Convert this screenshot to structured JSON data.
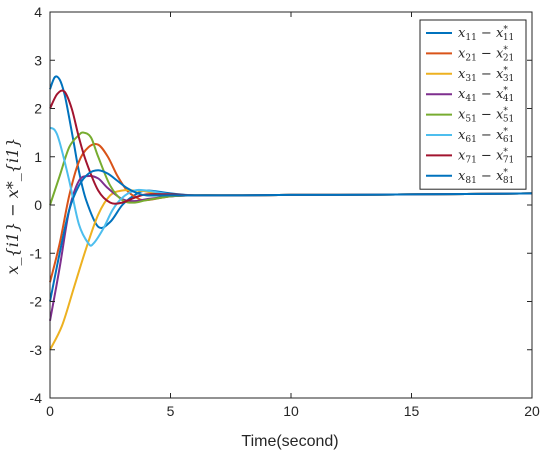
{
  "chart_data": {
    "type": "line",
    "title": "",
    "xlabel": "Time(second)",
    "ylabel": "x_{i1} − x*_{i1}",
    "xlim": [
      0,
      20
    ],
    "ylim": [
      -4,
      4
    ],
    "xticks": [
      0,
      5,
      10,
      15,
      20
    ],
    "yticks": [
      -4,
      -3,
      -2,
      -1,
      0,
      1,
      2,
      3,
      4
    ],
    "grid": false,
    "legend_position": "top-right",
    "series": [
      {
        "name": "x11 − x*11",
        "color": "#0072BD",
        "x": [
          0,
          0.2,
          0.4,
          0.6,
          0.8,
          1.0,
          1.2,
          1.5,
          2.0,
          2.5,
          3.0,
          3.5,
          4.0,
          5.0,
          6.0,
          8.0,
          10.0,
          12.0,
          15.0,
          20.0
        ],
        "y": [
          2.4,
          2.65,
          2.6,
          2.3,
          1.8,
          1.25,
          0.7,
          0.1,
          -0.45,
          -0.35,
          0.0,
          0.2,
          0.3,
          0.24,
          0.2,
          0.2,
          0.21,
          0.21,
          0.22,
          0.24
        ]
      },
      {
        "name": "x21 − x*21",
        "color": "#D95319",
        "x": [
          0,
          0.4,
          0.8,
          1.2,
          1.6,
          2.0,
          2.4,
          2.8,
          3.2,
          3.6,
          4.0,
          5.0,
          6.0,
          8.0,
          10.0,
          12.0,
          15.0,
          20.0
        ],
        "y": [
          -1.6,
          -0.8,
          0.2,
          0.9,
          1.2,
          1.25,
          1.0,
          0.6,
          0.3,
          0.15,
          0.1,
          0.18,
          0.2,
          0.2,
          0.21,
          0.21,
          0.22,
          0.24
        ]
      },
      {
        "name": "x31 − x*31",
        "color": "#EDB120",
        "x": [
          0,
          0.5,
          1.0,
          1.5,
          2.0,
          2.5,
          3.0,
          3.5,
          4.0,
          4.5,
          5.0,
          6.0,
          8.0,
          10.0,
          12.0,
          15.0,
          20.0
        ],
        "y": [
          -3.0,
          -2.5,
          -1.7,
          -0.9,
          -0.2,
          0.2,
          0.3,
          0.3,
          0.28,
          0.22,
          0.2,
          0.2,
          0.2,
          0.21,
          0.21,
          0.22,
          0.24
        ]
      },
      {
        "name": "x41 − x*41",
        "color": "#7E2F8E",
        "x": [
          0,
          0.4,
          0.8,
          1.2,
          1.6,
          2.0,
          2.4,
          3.0,
          3.5,
          4.0,
          5.0,
          6.0,
          8.0,
          10.0,
          12.0,
          15.0,
          20.0
        ],
        "y": [
          -2.4,
          -1.3,
          -0.1,
          0.5,
          0.6,
          0.55,
          0.35,
          0.12,
          0.08,
          0.12,
          0.18,
          0.2,
          0.2,
          0.21,
          0.21,
          0.22,
          0.24
        ]
      },
      {
        "name": "x51 − x*51",
        "color": "#77AC30",
        "x": [
          0,
          0.4,
          0.8,
          1.2,
          1.4,
          1.7,
          2.0,
          2.5,
          3.0,
          3.5,
          4.0,
          5.0,
          6.0,
          8.0,
          10.0,
          12.0,
          15.0,
          20.0
        ],
        "y": [
          0.0,
          0.6,
          1.2,
          1.45,
          1.5,
          1.4,
          1.0,
          0.4,
          0.1,
          0.05,
          0.1,
          0.18,
          0.2,
          0.2,
          0.21,
          0.21,
          0.22,
          0.24
        ]
      },
      {
        "name": "x61 − x*61",
        "color": "#4DBEEE",
        "x": [
          0,
          0.2,
          0.4,
          0.8,
          1.2,
          1.6,
          1.8,
          2.2,
          2.6,
          3.0,
          3.5,
          4.0,
          5.0,
          6.0,
          8.0,
          10.0,
          12.0,
          15.0,
          20.0
        ],
        "y": [
          1.6,
          1.55,
          1.3,
          0.5,
          -0.4,
          -0.8,
          -0.8,
          -0.5,
          -0.1,
          0.15,
          0.3,
          0.3,
          0.22,
          0.2,
          0.2,
          0.21,
          0.21,
          0.22,
          0.24
        ]
      },
      {
        "name": "x71 − x*71",
        "color": "#A2142F",
        "x": [
          0,
          0.3,
          0.6,
          0.9,
          1.2,
          1.5,
          2.0,
          2.5,
          3.0,
          3.5,
          4.0,
          5.0,
          6.0,
          8.0,
          10.0,
          12.0,
          15.0,
          20.0
        ],
        "y": [
          2.0,
          2.3,
          2.35,
          2.0,
          1.4,
          0.9,
          0.3,
          0.05,
          0.05,
          0.15,
          0.22,
          0.22,
          0.2,
          0.2,
          0.21,
          0.21,
          0.22,
          0.24
        ]
      },
      {
        "name": "x81 − x*81",
        "color": "#0072BD",
        "x": [
          0,
          0.4,
          0.8,
          1.2,
          1.6,
          2.0,
          2.4,
          2.8,
          3.2,
          3.6,
          4.0,
          5.0,
          6.0,
          8.0,
          10.0,
          12.0,
          15.0,
          20.0
        ],
        "y": [
          -2.0,
          -1.0,
          -0.1,
          0.4,
          0.65,
          0.72,
          0.65,
          0.5,
          0.35,
          0.25,
          0.2,
          0.2,
          0.2,
          0.2,
          0.21,
          0.21,
          0.22,
          0.24
        ]
      }
    ],
    "legend_entries": [
      {
        "base": "x",
        "sub": "11",
        "star_base": "x",
        "star_sub": "11"
      },
      {
        "base": "x",
        "sub": "21",
        "star_base": "x",
        "star_sub": "21"
      },
      {
        "base": "x",
        "sub": "31",
        "star_base": "x",
        "star_sub": "31"
      },
      {
        "base": "x",
        "sub": "41",
        "star_base": "x",
        "star_sub": "41"
      },
      {
        "base": "x",
        "sub": "51",
        "star_base": "x",
        "star_sub": "51"
      },
      {
        "base": "x",
        "sub": "61",
        "star_base": "x",
        "star_sub": "61"
      },
      {
        "base": "x",
        "sub": "71",
        "star_base": "x",
        "star_sub": "71"
      },
      {
        "base": "x",
        "sub": "81",
        "star_base": "x",
        "star_sub": "81"
      }
    ]
  }
}
